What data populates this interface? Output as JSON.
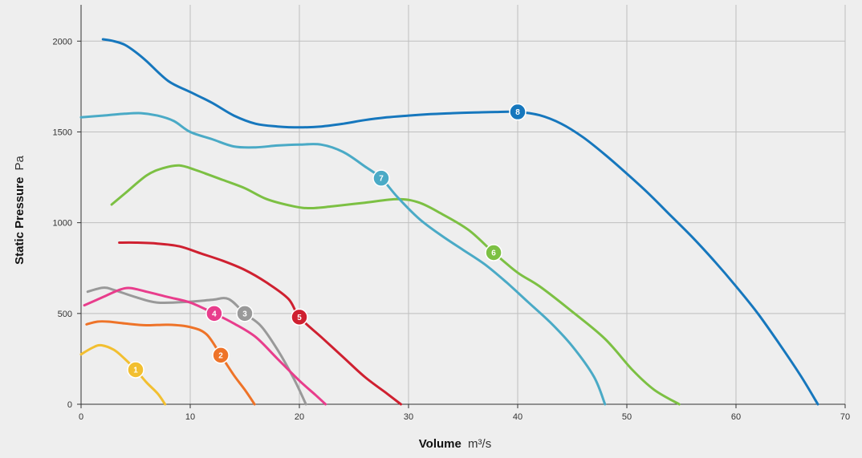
{
  "chart_data": {
    "type": "line",
    "xlabel": {
      "bold": "Volume",
      "unit": "m³/s"
    },
    "ylabel": {
      "bold": "Static Pressure",
      "unit": "Pa"
    },
    "xlim": [
      0,
      70
    ],
    "ylim": [
      0,
      2200
    ],
    "x_ticks": [
      0,
      10,
      20,
      30,
      40,
      50,
      60,
      70
    ],
    "y_ticks": [
      0,
      500,
      1000,
      1500,
      2000
    ],
    "grid": true,
    "background_color": "#eeeeee",
    "grid_color": "#bfbfbf",
    "axis_color": "#333333",
    "series": [
      {
        "name": "1",
        "color": "#f2bf30",
        "label_point": [
          5,
          190
        ],
        "points": [
          [
            0,
            275
          ],
          [
            1,
            310
          ],
          [
            1.8,
            325
          ],
          [
            3,
            300
          ],
          [
            4,
            250
          ],
          [
            5,
            190
          ],
          [
            6,
            120
          ],
          [
            7,
            60
          ],
          [
            7.7,
            0
          ]
        ]
      },
      {
        "name": "2",
        "color": "#ee7328",
        "label_point": [
          12.8,
          270
        ],
        "points": [
          [
            0.5,
            440
          ],
          [
            1.5,
            455
          ],
          [
            2.5,
            455
          ],
          [
            4,
            445
          ],
          [
            6,
            435
          ],
          [
            8,
            438
          ],
          [
            10,
            425
          ],
          [
            11.5,
            385
          ],
          [
            12.8,
            270
          ],
          [
            14,
            160
          ],
          [
            15,
            80
          ],
          [
            15.9,
            0
          ]
        ]
      },
      {
        "name": "3",
        "color": "#999999",
        "label_point": [
          15,
          500
        ],
        "points": [
          [
            0.6,
            620
          ],
          [
            2,
            642
          ],
          [
            3,
            630
          ],
          [
            5,
            590
          ],
          [
            7,
            560
          ],
          [
            10,
            565
          ],
          [
            12,
            575
          ],
          [
            13.5,
            580
          ],
          [
            15,
            500
          ],
          [
            16.5,
            430
          ],
          [
            18,
            300
          ],
          [
            19.5,
            140
          ],
          [
            20.6,
            0
          ]
        ]
      },
      {
        "name": "4",
        "color": "#e83d8c",
        "label_point": [
          12.2,
          500
        ],
        "points": [
          [
            0.3,
            545
          ],
          [
            2,
            590
          ],
          [
            3.5,
            630
          ],
          [
            4.5,
            640
          ],
          [
            6,
            620
          ],
          [
            8,
            590
          ],
          [
            10,
            560
          ],
          [
            12.2,
            500
          ],
          [
            14,
            445
          ],
          [
            16,
            370
          ],
          [
            18,
            250
          ],
          [
            20,
            130
          ],
          [
            21.5,
            50
          ],
          [
            22.4,
            0
          ]
        ]
      },
      {
        "name": "5",
        "color": "#cf2030",
        "label_point": [
          20,
          480
        ],
        "points": [
          [
            3.5,
            890
          ],
          [
            5,
            890
          ],
          [
            7,
            885
          ],
          [
            9,
            870
          ],
          [
            11,
            830
          ],
          [
            13,
            790
          ],
          [
            15,
            740
          ],
          [
            17,
            670
          ],
          [
            19,
            580
          ],
          [
            20,
            480
          ],
          [
            22,
            370
          ],
          [
            24,
            260
          ],
          [
            26,
            150
          ],
          [
            28,
            60
          ],
          [
            29.3,
            0
          ]
        ]
      },
      {
        "name": "6",
        "color": "#7cc043",
        "label_point": [
          37.8,
          835
        ],
        "points": [
          [
            2.8,
            1100
          ],
          [
            4,
            1160
          ],
          [
            6,
            1260
          ],
          [
            7.5,
            1300
          ],
          [
            9,
            1315
          ],
          [
            10.5,
            1290
          ],
          [
            13,
            1235
          ],
          [
            15,
            1190
          ],
          [
            17,
            1130
          ],
          [
            19.5,
            1090
          ],
          [
            21,
            1080
          ],
          [
            23,
            1090
          ],
          [
            26,
            1110
          ],
          [
            29,
            1130
          ],
          [
            31,
            1110
          ],
          [
            33,
            1050
          ],
          [
            35.5,
            960
          ],
          [
            37.8,
            835
          ],
          [
            40,
            725
          ],
          [
            42,
            650
          ],
          [
            45,
            510
          ],
          [
            48,
            360
          ],
          [
            50.5,
            190
          ],
          [
            52.5,
            80
          ],
          [
            54.8,
            0
          ]
        ]
      },
      {
        "name": "7",
        "color": "#4aaac6",
        "label_point": [
          27.5,
          1245
        ],
        "points": [
          [
            0,
            1580
          ],
          [
            2,
            1590
          ],
          [
            4,
            1600
          ],
          [
            5.5,
            1603
          ],
          [
            7,
            1590
          ],
          [
            8.5,
            1560
          ],
          [
            10,
            1500
          ],
          [
            12,
            1460
          ],
          [
            14,
            1420
          ],
          [
            16,
            1415
          ],
          [
            18,
            1425
          ],
          [
            20,
            1430
          ],
          [
            22,
            1430
          ],
          [
            24,
            1390
          ],
          [
            26,
            1310
          ],
          [
            27.5,
            1245
          ],
          [
            29,
            1140
          ],
          [
            31,
            1020
          ],
          [
            33,
            930
          ],
          [
            35,
            850
          ],
          [
            37,
            770
          ],
          [
            39,
            670
          ],
          [
            41,
            560
          ],
          [
            43,
            450
          ],
          [
            45,
            320
          ],
          [
            47,
            150
          ],
          [
            48,
            0
          ]
        ]
      },
      {
        "name": "8",
        "color": "#1677bd",
        "label_point": [
          40,
          1610
        ],
        "points": [
          [
            2,
            2010
          ],
          [
            3,
            2000
          ],
          [
            4,
            1980
          ],
          [
            5,
            1940
          ],
          [
            6,
            1890
          ],
          [
            8,
            1780
          ],
          [
            10,
            1720
          ],
          [
            12,
            1660
          ],
          [
            14,
            1590
          ],
          [
            16,
            1545
          ],
          [
            18,
            1530
          ],
          [
            20,
            1525
          ],
          [
            22,
            1530
          ],
          [
            24,
            1545
          ],
          [
            26,
            1565
          ],
          [
            28,
            1580
          ],
          [
            30,
            1590
          ],
          [
            32,
            1598
          ],
          [
            34,
            1603
          ],
          [
            36,
            1607
          ],
          [
            38,
            1610
          ],
          [
            40,
            1610
          ],
          [
            42,
            1592
          ],
          [
            44,
            1545
          ],
          [
            46,
            1470
          ],
          [
            48,
            1375
          ],
          [
            50,
            1270
          ],
          [
            52,
            1160
          ],
          [
            54,
            1040
          ],
          [
            56,
            920
          ],
          [
            58,
            790
          ],
          [
            60,
            650
          ],
          [
            62,
            500
          ],
          [
            64,
            330
          ],
          [
            66,
            150
          ],
          [
            67.5,
            0
          ]
        ]
      }
    ]
  }
}
